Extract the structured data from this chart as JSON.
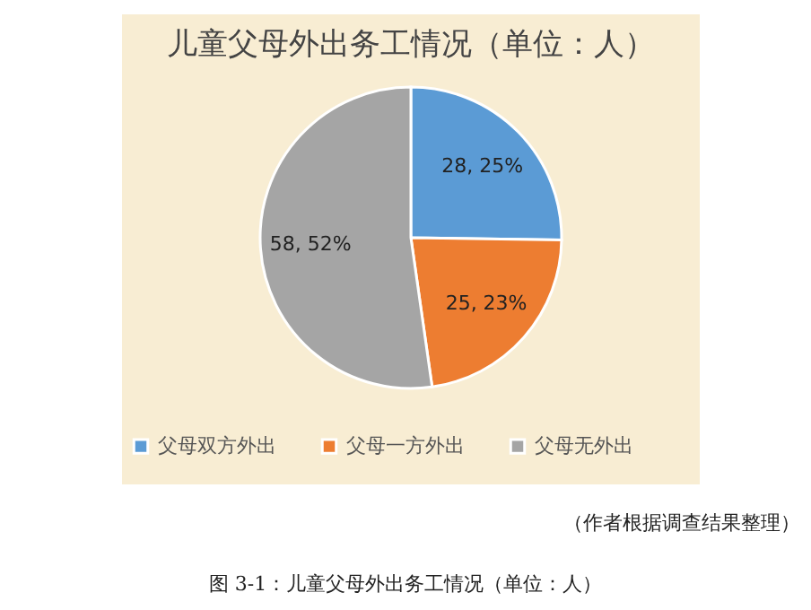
{
  "chart_data": {
    "type": "pie",
    "title": "儿童父母外出务工情况（单位：人）",
    "categories": [
      "父母双方外出",
      "父母一方外出",
      "父母无外出"
    ],
    "values": [
      28,
      25,
      58
    ],
    "colors": [
      "#5b9bd5",
      "#ed7d31",
      "#a5a5a5"
    ],
    "value_labels": [
      "28, 25%",
      "25, 23%",
      "58, 52%"
    ],
    "legend": "bottom",
    "annotations": [
      "（作者根据调查结果整理）",
      "图 3-1：儿童父母外出务工情况（单位：人）"
    ]
  }
}
